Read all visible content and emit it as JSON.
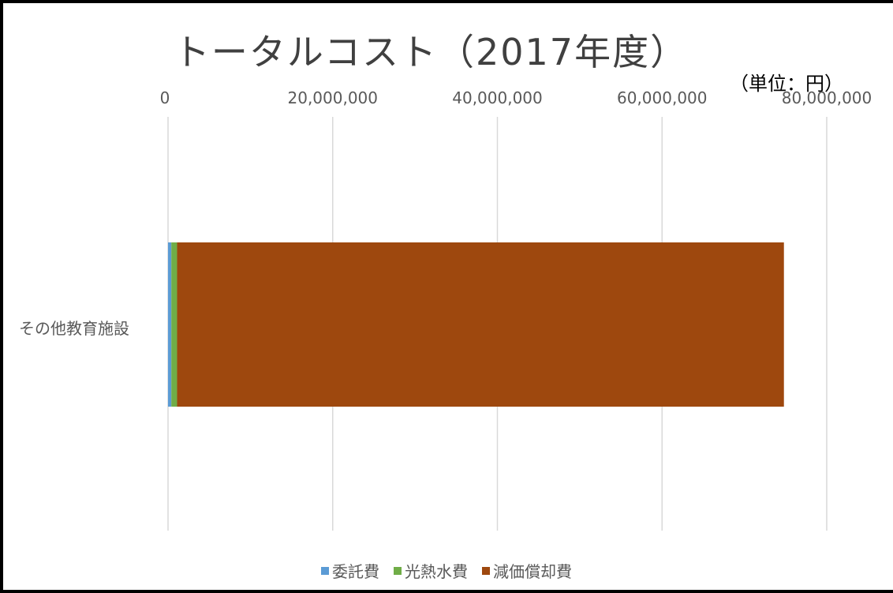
{
  "chart_data": {
    "type": "bar",
    "orientation": "horizontal",
    "stacked": true,
    "title": "トータルコスト（2017年度）",
    "unit_note": "（単位：円）",
    "categories": [
      "その他教育施設"
    ],
    "series": [
      {
        "name": "委託費",
        "color": "#5B9BD5",
        "values": [
          400000
        ]
      },
      {
        "name": "光熱水費",
        "color": "#70AD47",
        "values": [
          700000
        ]
      },
      {
        "name": "減価償却費",
        "color": "#9E480E",
        "values": [
          73700000
        ]
      }
    ],
    "xlim": [
      0,
      80000000
    ],
    "x_ticks": [
      "0",
      "20,000,000",
      "40,000,000",
      "60,000,000",
      "80,000,000"
    ],
    "x_axis_position": "top",
    "grid": true,
    "legend_position": "bottom"
  }
}
